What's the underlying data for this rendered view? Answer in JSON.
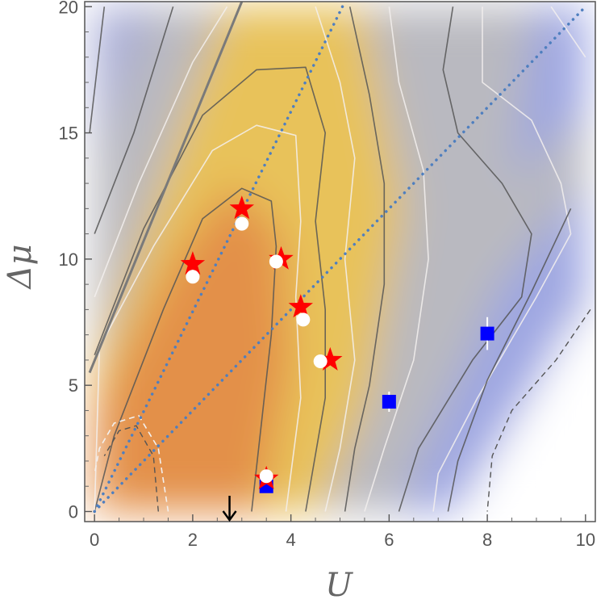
{
  "chart_data": {
    "type": "heatmap",
    "title": "",
    "xlabel": "U",
    "ylabel": "Δμ",
    "xlim": [
      -0.2,
      10.2
    ],
    "ylim": [
      -0.4,
      20.2
    ],
    "xticks": [
      0,
      2,
      4,
      6,
      8,
      10
    ],
    "yticks": [
      0,
      5,
      10,
      15,
      20
    ],
    "grid": false,
    "legend": "none",
    "colors": {
      "high": "#e3904a",
      "mid": "#e8c25a",
      "grey": "#b9b9c0",
      "low": "#9da6e2",
      "contour_dark": "#555555",
      "contour_light": "#f3f0ee",
      "dotted_line": "#4f7fbf",
      "star": "#ff0000",
      "circle": "#ffffff",
      "square": "#0000ff",
      "arrow": "#000000"
    },
    "guide_lines": [
      {
        "style": "dotted",
        "from": [
          0,
          0
        ],
        "to": [
          5.1,
          20.2
        ]
      },
      {
        "style": "dotted",
        "from": [
          0,
          0
        ],
        "to": [
          10.0,
          20.0
        ]
      },
      {
        "style": "solid",
        "from": [
          -0.1,
          5.5
        ],
        "to": [
          3.0,
          20.2
        ]
      }
    ],
    "stars": [
      {
        "x": 2.0,
        "y": 9.8
      },
      {
        "x": 3.0,
        "y": 12.0
      },
      {
        "x": 3.8,
        "y": 10.0
      },
      {
        "x": 4.2,
        "y": 8.1
      },
      {
        "x": 4.8,
        "y": 6.0
      },
      {
        "x": 3.5,
        "y": 1.3
      }
    ],
    "circles": [
      {
        "x": 2.0,
        "y": 9.3,
        "err": 0.2
      },
      {
        "x": 3.0,
        "y": 11.4,
        "err": 0.25
      },
      {
        "x": 3.7,
        "y": 9.9,
        "err": 0.15
      },
      {
        "x": 4.25,
        "y": 7.6,
        "err": 0.2
      },
      {
        "x": 4.6,
        "y": 5.95,
        "err": 0.1
      },
      {
        "x": 3.5,
        "y": 1.4,
        "err": 0.1
      }
    ],
    "squares": [
      {
        "x": 3.5,
        "y": 1.0,
        "err": 0.1
      },
      {
        "x": 6.0,
        "y": 4.35,
        "err": 0.4
      },
      {
        "x": 8.0,
        "y": 7.05,
        "err": 0.65
      }
    ],
    "arrow_marker": {
      "x": 2.75
    }
  }
}
